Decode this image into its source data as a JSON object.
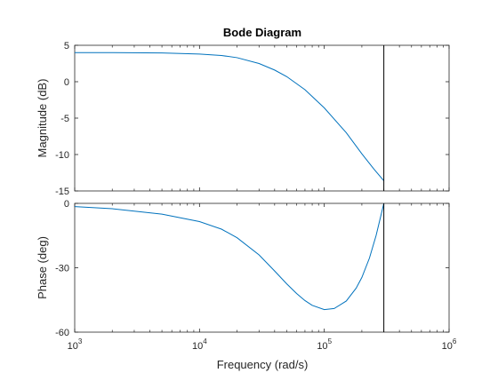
{
  "chart_data": {
    "type": "line",
    "title": "Bode Diagram",
    "xlabel": "Frequency  (rad/s)",
    "x_scale": "log",
    "xlim": [
      1000,
      1000000
    ],
    "x_tick_labels": [
      {
        "value": 1000,
        "base": "10",
        "exp": "3"
      },
      {
        "value": 10000,
        "base": "10",
        "exp": "4"
      },
      {
        "value": 100000,
        "base": "10",
        "exp": "5"
      },
      {
        "value": 1000000,
        "base": "10",
        "exp": "6"
      }
    ],
    "line_color": "#0072BD",
    "axes_color": "#262626",
    "marker_line_color": "#000000",
    "marker_frequency": 300000,
    "grid": false,
    "panels": [
      {
        "name": "magnitude",
        "ylabel": "Magnitude (dB)",
        "ylim": [
          -15,
          5
        ],
        "y_ticks": [
          5,
          0,
          -5,
          -10,
          -15
        ],
        "y_tick_labels": [
          "5",
          "0",
          "-5",
          "-10",
          "-15"
        ],
        "series": [
          {
            "x": [
              1000,
              2000,
              5000,
              10000,
              15000,
              20000,
              30000,
              40000,
              50000,
              70000,
              100000,
              150000,
              200000,
              250000,
              300000
            ],
            "y": [
              4.0,
              4.0,
              3.95,
              3.8,
              3.6,
              3.3,
              2.5,
              1.6,
              0.7,
              -1.1,
              -3.6,
              -7.0,
              -9.9,
              -12.0,
              -13.6
            ]
          }
        ]
      },
      {
        "name": "phase",
        "ylabel": "Phase (deg)",
        "ylim": [
          -60,
          0
        ],
        "y_ticks": [
          0,
          -30,
          -60
        ],
        "y_tick_labels": [
          "0",
          "-30",
          "-60"
        ],
        "series": [
          {
            "x": [
              1000,
              2000,
              5000,
              10000,
              15000,
              20000,
              30000,
              40000,
              50000,
              60000,
              70000,
              80000,
              100000,
              120000,
              150000,
              180000,
              200000,
              230000,
              260000,
              300000
            ],
            "y": [
              -1.5,
              -2.5,
              -5.0,
              -8.5,
              -12.0,
              -16.0,
              -24.0,
              -31.5,
              -37.5,
              -42.0,
              -45.3,
              -47.5,
              -49.5,
              -49.0,
              -45.5,
              -39.5,
              -34.5,
              -25.5,
              -15.0,
              0.0
            ]
          }
        ]
      }
    ]
  }
}
